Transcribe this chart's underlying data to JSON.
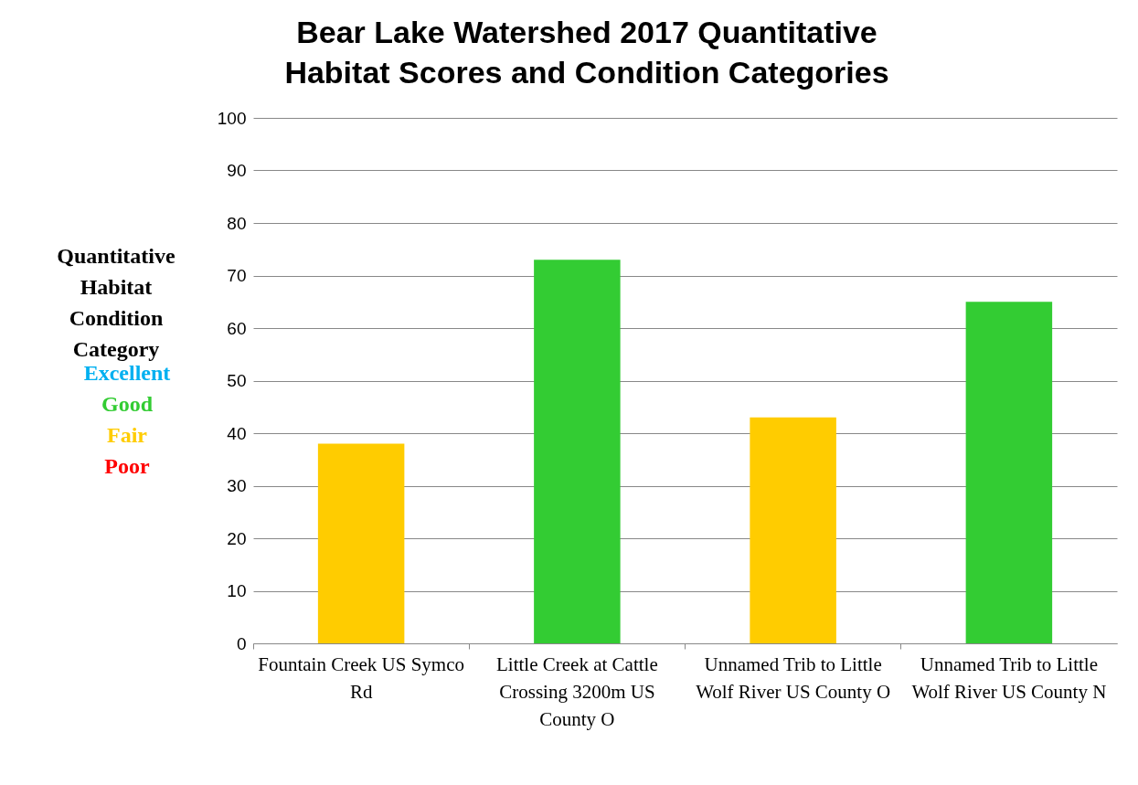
{
  "chart_data": {
    "type": "bar",
    "title": "Bear Lake Watershed 2017 Quantitative Habitat Scores and Condition Categories",
    "categories": [
      "Fountain Creek US Symco Rd",
      "Little Creek at Cattle Crossing 3200m US County O",
      "Unnamed Trib to Little Wolf River US County O",
      "Unnamed Trib to Little Wolf River US County N"
    ],
    "series": [
      {
        "name": "Excellent",
        "color": "#00b0f0",
        "values": [
          null,
          null,
          null,
          null
        ]
      },
      {
        "name": "Good",
        "color": "#33cc33",
        "values": [
          null,
          73,
          null,
          65
        ]
      },
      {
        "name": "Fair",
        "color": "#ffcc00",
        "values": [
          38,
          null,
          43,
          null
        ]
      },
      {
        "name": "Poor",
        "color": "#ff0000",
        "values": [
          null,
          null,
          null,
          null
        ]
      }
    ],
    "legend_title": "Quantitative Habitat Condition Category",
    "legend": "left",
    "ylim": [
      0,
      100
    ],
    "yticks": [
      0,
      10,
      20,
      30,
      40,
      50,
      60,
      70,
      80,
      90,
      100
    ],
    "grid": "y"
  }
}
